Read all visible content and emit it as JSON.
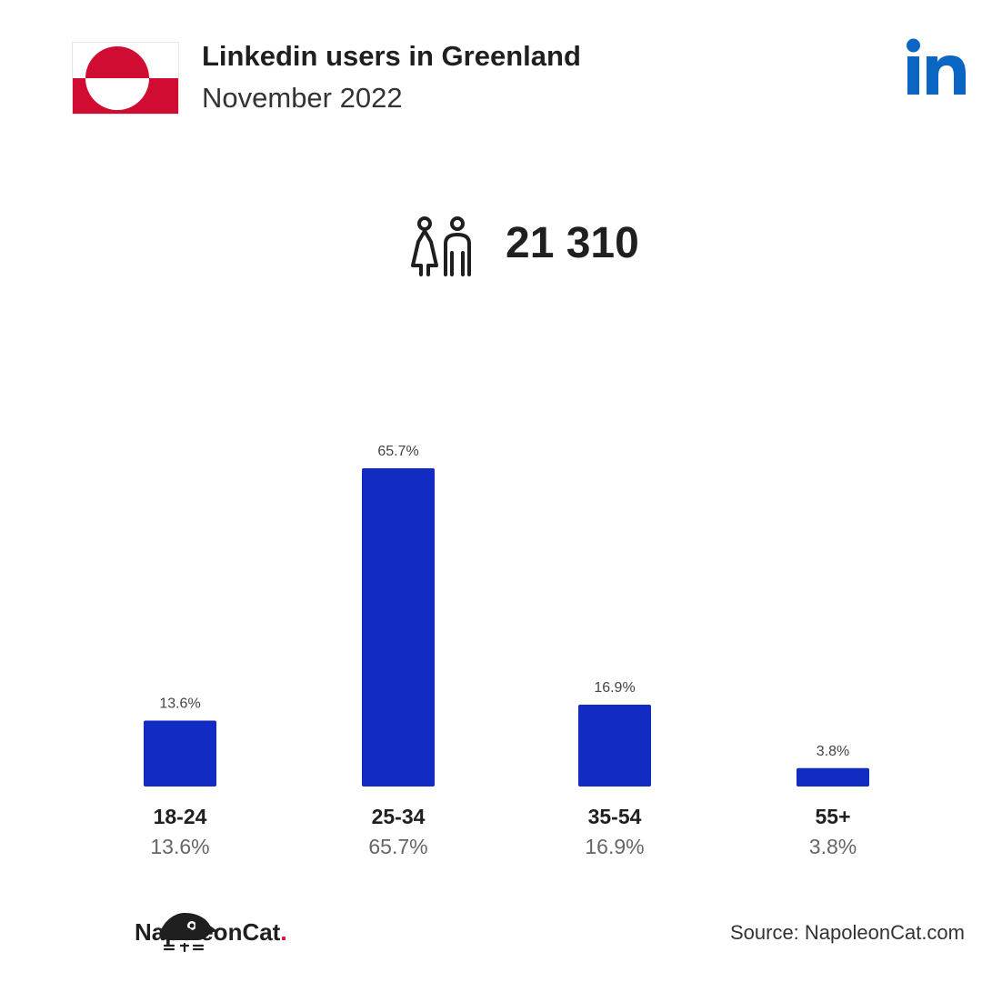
{
  "header": {
    "title": "Linkedin users in Greenland",
    "subtitle": "November 2022",
    "flag_icon": "greenland-flag-icon",
    "logo_icon": "linkedin-logo-icon"
  },
  "total": {
    "icon": "people-icon",
    "value": "21 310"
  },
  "colors": {
    "bar": "#112bc3",
    "linkedin": "#0a66c2",
    "flag_red": "#d00c33",
    "text": "#1f1f1f",
    "muted": "#666666"
  },
  "chart_data": {
    "type": "bar",
    "categories": [
      "18-24",
      "25-34",
      "35-54",
      "55+"
    ],
    "values": [
      13.6,
      65.7,
      16.9,
      3.8
    ],
    "value_labels": [
      "13.6%",
      "65.7%",
      "16.9%",
      "3.8%"
    ],
    "ylim": [
      0,
      65.7
    ],
    "grid": false,
    "legend": "none"
  },
  "footer": {
    "brand_name": "NapoleonCat",
    "brand_dot": ".",
    "brand_icon": "napoleoncat-logo-icon",
    "source": "Source: NapoleonCat.com"
  }
}
